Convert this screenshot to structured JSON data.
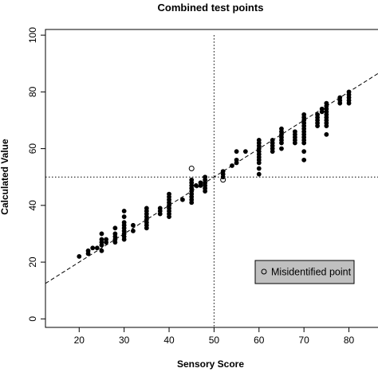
{
  "chart_data": {
    "type": "scatter",
    "title": "Combined test points",
    "xlabel": "Sensory Score",
    "ylabel": "Calculated Value",
    "xlim": [
      12.5,
      87
    ],
    "ylim": [
      -3,
      102
    ],
    "xticks": [
      20,
      30,
      40,
      50,
      60,
      70,
      80
    ],
    "yticks": [
      0,
      20,
      40,
      60,
      80,
      100
    ],
    "grid": false,
    "reference_lines": {
      "vertical_x": 50,
      "horizontal_y": 50,
      "style": "dotted"
    },
    "fit_line": {
      "style": "dashed",
      "x": [
        12.5,
        87
      ],
      "y": [
        12.5,
        87
      ]
    },
    "legend": {
      "label": "Misidentified point",
      "placement": "bottom-right",
      "background": "#c0c0c0"
    },
    "series": [
      {
        "marker": "filled-circle",
        "points": [
          [
            20,
            22
          ],
          [
            22,
            23
          ],
          [
            22,
            24
          ],
          [
            23,
            25
          ],
          [
            24,
            25
          ],
          [
            25,
            24
          ],
          [
            25,
            26
          ],
          [
            25,
            27
          ],
          [
            25,
            28
          ],
          [
            25,
            30
          ],
          [
            26,
            27
          ],
          [
            26,
            28
          ],
          [
            28,
            27
          ],
          [
            28,
            28
          ],
          [
            28,
            29
          ],
          [
            28,
            30
          ],
          [
            28,
            32
          ],
          [
            30,
            28
          ],
          [
            30,
            29
          ],
          [
            30,
            30
          ],
          [
            30,
            31
          ],
          [
            30,
            32
          ],
          [
            30,
            33
          ],
          [
            30,
            34
          ],
          [
            30,
            36
          ],
          [
            30,
            38
          ],
          [
            32,
            31
          ],
          [
            32,
            33
          ],
          [
            35,
            32
          ],
          [
            35,
            33
          ],
          [
            35,
            34
          ],
          [
            35,
            35
          ],
          [
            35,
            36
          ],
          [
            35,
            37
          ],
          [
            35,
            38
          ],
          [
            35,
            39
          ],
          [
            38,
            37
          ],
          [
            38,
            38
          ],
          [
            38,
            39
          ],
          [
            40,
            36
          ],
          [
            40,
            37
          ],
          [
            40,
            38
          ],
          [
            40,
            39
          ],
          [
            40,
            40
          ],
          [
            40,
            41
          ],
          [
            40,
            42
          ],
          [
            40,
            43
          ],
          [
            40,
            44
          ],
          [
            43,
            42
          ],
          [
            45,
            41
          ],
          [
            45,
            42
          ],
          [
            45,
            43
          ],
          [
            45,
            44
          ],
          [
            45,
            45
          ],
          [
            45,
            46
          ],
          [
            45,
            47
          ],
          [
            45,
            48
          ],
          [
            45,
            49
          ],
          [
            46,
            47
          ],
          [
            47,
            47
          ],
          [
            47,
            48
          ],
          [
            48,
            45
          ],
          [
            48,
            46
          ],
          [
            48,
            47
          ],
          [
            48,
            48
          ],
          [
            48,
            49
          ],
          [
            48,
            50
          ],
          [
            52,
            50
          ],
          [
            52,
            51
          ],
          [
            52,
            52
          ],
          [
            54,
            54
          ],
          [
            55,
            55
          ],
          [
            55,
            56
          ],
          [
            55,
            59
          ],
          [
            57,
            59
          ],
          [
            60,
            51
          ],
          [
            60,
            53
          ],
          [
            60,
            55
          ],
          [
            60,
            56
          ],
          [
            60,
            57
          ],
          [
            60,
            58
          ],
          [
            60,
            59
          ],
          [
            60,
            60
          ],
          [
            60,
            61
          ],
          [
            60,
            62
          ],
          [
            60,
            63
          ],
          [
            63,
            59
          ],
          [
            63,
            60
          ],
          [
            63,
            61
          ],
          [
            63,
            62
          ],
          [
            63,
            63
          ],
          [
            65,
            60
          ],
          [
            65,
            62
          ],
          [
            65,
            63
          ],
          [
            65,
            64
          ],
          [
            65,
            65
          ],
          [
            65,
            66
          ],
          [
            65,
            67
          ],
          [
            68,
            62
          ],
          [
            68,
            63
          ],
          [
            68,
            64
          ],
          [
            68,
            65
          ],
          [
            68,
            66
          ],
          [
            70,
            56
          ],
          [
            70,
            59
          ],
          [
            70,
            62
          ],
          [
            70,
            63
          ],
          [
            70,
            64
          ],
          [
            70,
            65
          ],
          [
            70,
            66
          ],
          [
            70,
            67
          ],
          [
            70,
            68
          ],
          [
            70,
            69
          ],
          [
            70,
            70
          ],
          [
            70,
            71
          ],
          [
            70,
            72
          ],
          [
            73,
            68
          ],
          [
            73,
            69
          ],
          [
            73,
            70
          ],
          [
            73,
            71
          ],
          [
            73,
            72
          ],
          [
            74,
            73
          ],
          [
            74,
            74
          ],
          [
            75,
            65
          ],
          [
            75,
            68
          ],
          [
            75,
            69
          ],
          [
            75,
            70
          ],
          [
            75,
            71
          ],
          [
            75,
            72
          ],
          [
            75,
            73
          ],
          [
            75,
            74
          ],
          [
            75,
            75
          ],
          [
            75,
            76
          ],
          [
            78,
            76
          ],
          [
            78,
            77
          ],
          [
            78,
            78
          ],
          [
            80,
            76
          ],
          [
            80,
            77
          ],
          [
            80,
            78
          ],
          [
            80,
            79
          ],
          [
            80,
            80
          ]
        ]
      },
      {
        "name": "Misidentified point",
        "marker": "open-circle",
        "points": [
          [
            45,
            53
          ],
          [
            52,
            49
          ]
        ]
      }
    ]
  }
}
